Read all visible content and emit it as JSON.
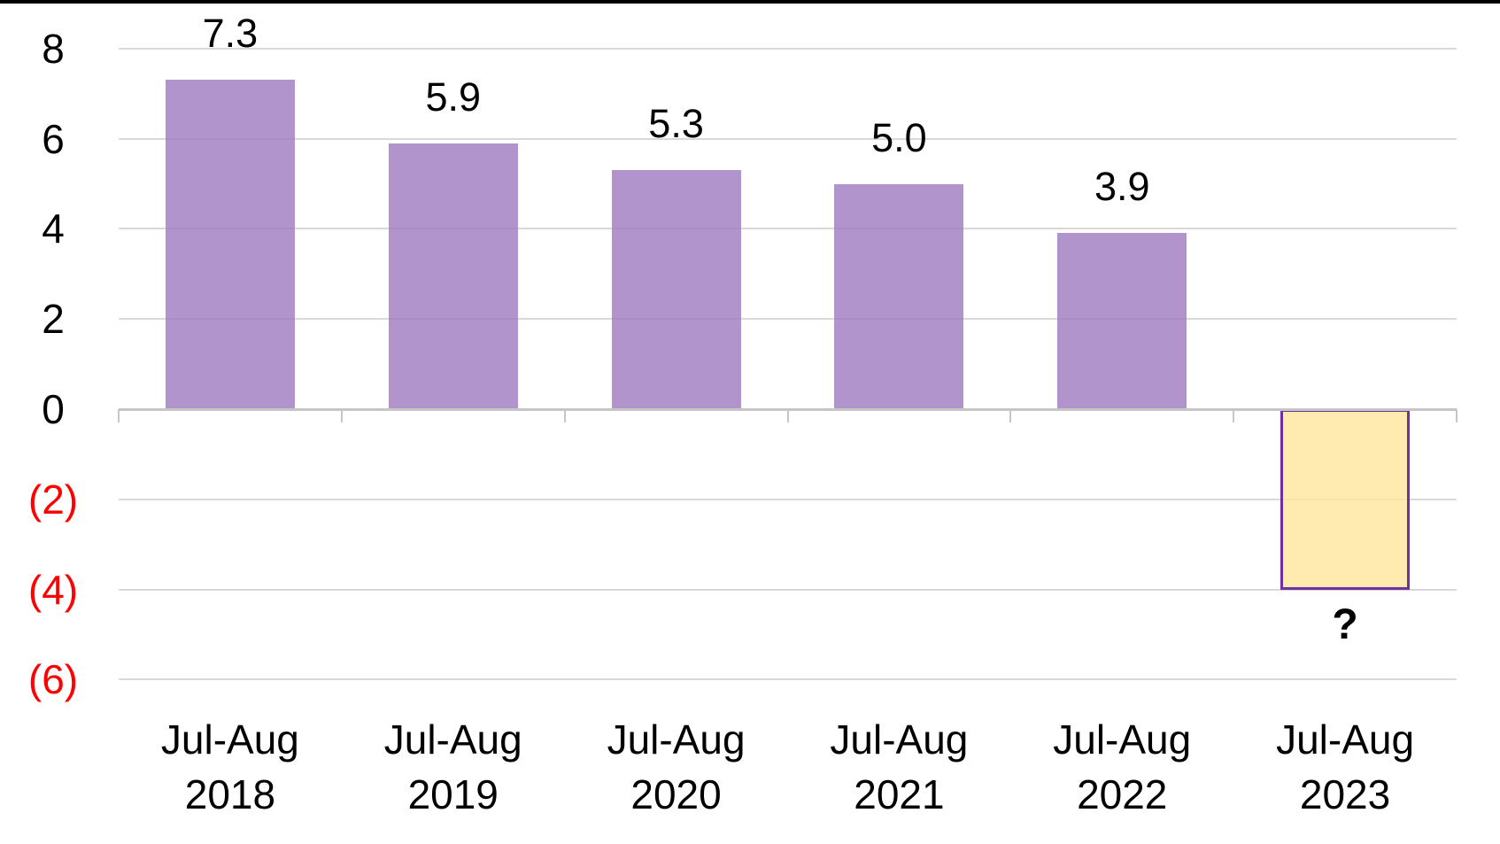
{
  "page": {
    "background": "#FFFFFF",
    "top_border_color": "#000000"
  },
  "chart_data": {
    "type": "bar",
    "title": "",
    "xlabel": "",
    "ylabel": "",
    "categories": [
      "Jul-Aug 2018",
      "Jul-Aug 2019",
      "Jul-Aug 2020",
      "Jul-Aug 2021",
      "Jul-Aug 2022",
      "Jul-Aug 2023"
    ],
    "values": [
      7.3,
      5.9,
      5.3,
      5.0,
      3.9,
      -4.0
    ],
    "data_labels": [
      "7.3",
      "5.9",
      "5.3",
      "5.0",
      "3.9",
      "?"
    ],
    "highlight_index": 5,
    "ylim": [
      -6,
      8
    ],
    "yticks": [
      8,
      6,
      4,
      2,
      0,
      -2,
      -4,
      -6
    ],
    "ytick_labels": [
      "8",
      "6",
      "4",
      "2",
      "0",
      "(2)",
      "(4)",
      "(6)"
    ],
    "grid": true,
    "legend": false,
    "colors": {
      "bar_fill": "#B294CD",
      "highlight_fill": "#FFEBB0",
      "highlight_border": "#7030A0",
      "gridline": "#D9D9D9",
      "axis_line": "#C6C6C6",
      "label_text": "#000000",
      "negative_tick_text": "#FF0000"
    }
  }
}
